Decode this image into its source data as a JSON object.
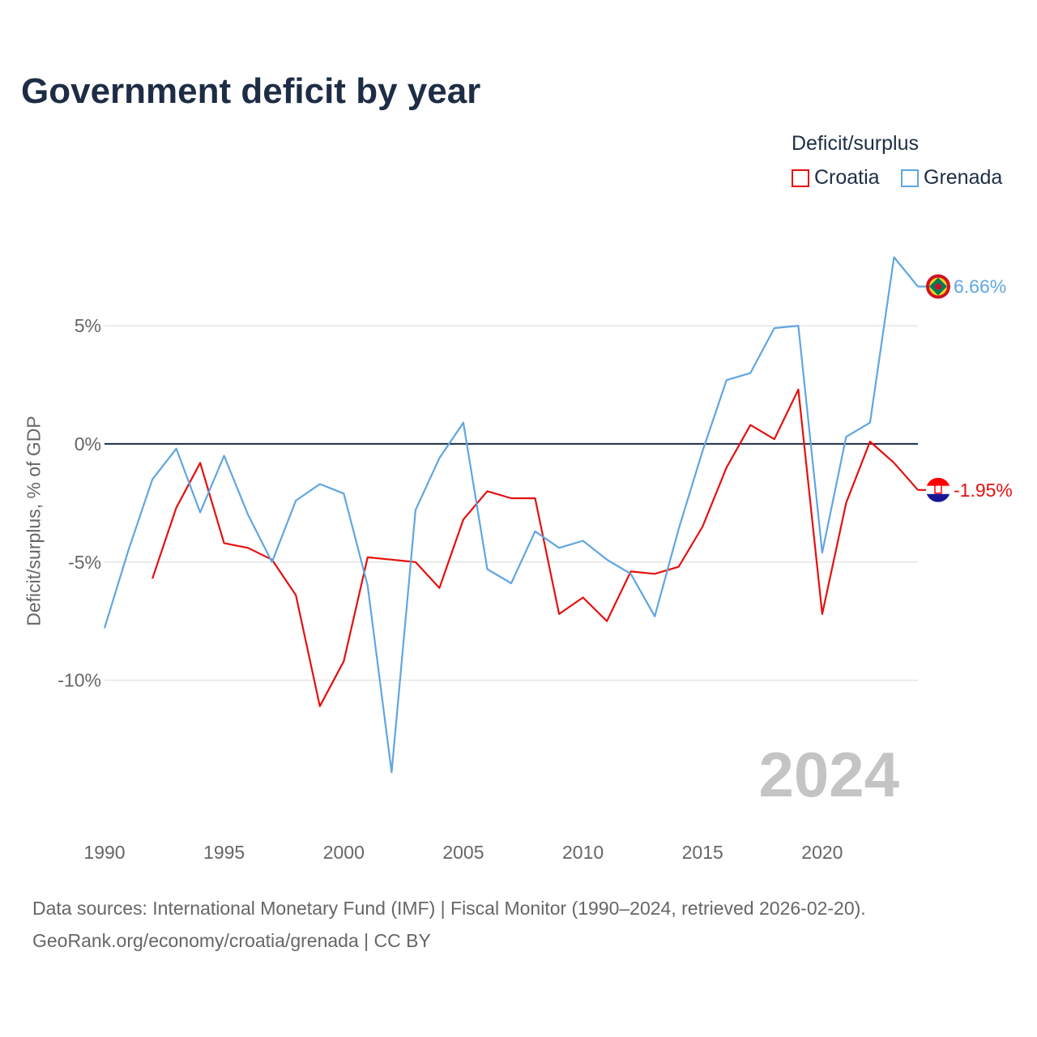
{
  "title": "Government deficit by year",
  "legend": {
    "title": "Deficit/surplus",
    "items": [
      {
        "name": "Croatia",
        "color": "#e4100f"
      },
      {
        "name": "Grenada",
        "color": "#60a6e2"
      }
    ]
  },
  "source": {
    "line1": "Data sources: International Monetary Fund (IMF) | Fiscal Monitor (1990–2024, retrieved 2026-02-20).",
    "line2": "GeoRank.org/economy/croatia/grenada | CC BY"
  },
  "chart_data": {
    "type": "line",
    "title": "Government deficit by year",
    "xlabel": "",
    "ylabel": "Deficit/surplus, % of GDP",
    "xlim": [
      1990,
      2024
    ],
    "ylim": [
      -15.5,
      8.5
    ],
    "x_ticks": [
      1990,
      1995,
      2000,
      2005,
      2010,
      2015,
      2020
    ],
    "x_tick_labels": [
      "1990",
      "1995",
      "2000",
      "2005",
      "2010",
      "2015",
      "2020"
    ],
    "y_ticks": [
      5,
      0,
      -5,
      -10
    ],
    "y_tick_labels": [
      "5%",
      "0%",
      "-5%",
      "-10%"
    ],
    "year_label": "2024",
    "series": [
      {
        "name": "Croatia",
        "color": "#e4100f",
        "end_label": "-1.95%",
        "x": [
          1992,
          1993,
          1994,
          1995,
          1996,
          1997,
          1998,
          1999,
          2000,
          2001,
          2002,
          2003,
          2004,
          2005,
          2006,
          2007,
          2008,
          2009,
          2010,
          2011,
          2012,
          2013,
          2014,
          2015,
          2016,
          2017,
          2018,
          2019,
          2020,
          2021,
          2022,
          2023,
          2024
        ],
        "values": [
          -5.7,
          -2.7,
          -0.8,
          -4.2,
          -4.4,
          -4.9,
          -6.4,
          -11.1,
          -9.2,
          -4.8,
          -4.9,
          -5.0,
          -6.1,
          -3.2,
          -2.0,
          -2.3,
          -2.3,
          -7.2,
          -6.5,
          -7.5,
          -5.4,
          -5.5,
          -5.2,
          -3.5,
          -1.0,
          0.8,
          0.2,
          2.3,
          -7.2,
          -2.5,
          0.1,
          -0.8,
          -1.95
        ]
      },
      {
        "name": "Grenada",
        "color": "#60a6e2",
        "end_label": "6.66%",
        "x": [
          1990,
          1991,
          1992,
          1993,
          1994,
          1995,
          1996,
          1997,
          1998,
          1999,
          2000,
          2001,
          2002,
          2003,
          2004,
          2005,
          2006,
          2007,
          2008,
          2009,
          2010,
          2011,
          2012,
          2013,
          2014,
          2015,
          2016,
          2017,
          2018,
          2019,
          2020,
          2021,
          2022,
          2023,
          2024
        ],
        "values": [
          -7.8,
          -4.5,
          -1.5,
          -0.2,
          -2.9,
          -0.5,
          -3.0,
          -5.0,
          -2.4,
          -1.7,
          -2.1,
          -6.0,
          -13.9,
          -2.8,
          -0.6,
          0.9,
          -5.3,
          -5.9,
          -3.7,
          -4.4,
          -4.1,
          -4.9,
          -5.5,
          -7.3,
          -3.6,
          -0.3,
          2.7,
          3.0,
          4.9,
          5.0,
          -4.6,
          0.3,
          0.9,
          7.9,
          6.66
        ]
      }
    ]
  }
}
